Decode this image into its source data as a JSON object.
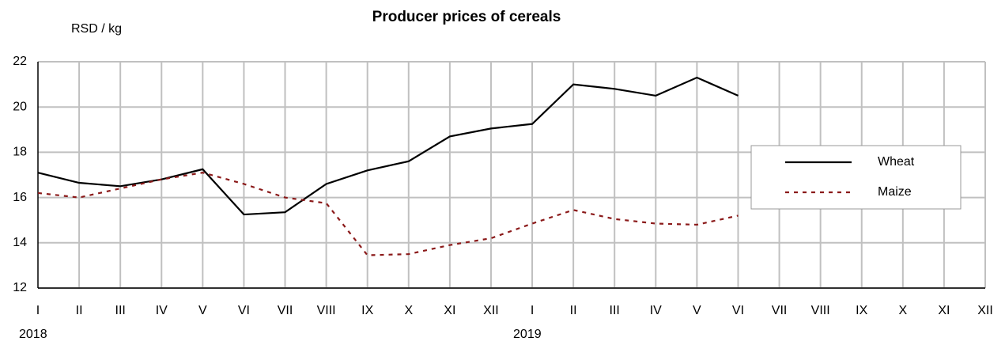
{
  "chart_data": {
    "type": "line",
    "title": "Producer prices of cereals",
    "y_label": "RSD / kg",
    "categories": [
      "I",
      "II",
      "III",
      "IV",
      "V",
      "VI",
      "VII",
      "VIII",
      "IX",
      "X",
      "XI",
      "XII",
      "I",
      "II",
      "III",
      "IV",
      "V",
      "VI",
      "VII",
      "VIII",
      "IX",
      "X",
      "XI",
      "XII"
    ],
    "years": [
      "2018",
      "2019"
    ],
    "series": [
      {
        "name": "Wheat",
        "color": "#000000",
        "dash": "solid",
        "values": [
          17.1,
          16.65,
          16.5,
          16.8,
          17.25,
          15.25,
          15.35,
          16.6,
          17.2,
          17.6,
          18.7,
          19.05,
          19.25,
          21.0,
          20.8,
          20.5,
          21.3,
          20.5,
          null,
          null,
          null,
          null,
          null,
          null
        ]
      },
      {
        "name": "Maize",
        "color": "#8b1a1a",
        "dash": "dotted",
        "values": [
          16.2,
          16.0,
          16.4,
          16.8,
          17.1,
          16.6,
          16.0,
          15.75,
          13.45,
          13.5,
          13.9,
          14.2,
          14.85,
          15.45,
          15.05,
          14.85,
          14.8,
          15.2,
          null,
          null,
          null,
          null,
          null,
          null
        ]
      }
    ],
    "ylim": [
      12,
      22
    ],
    "yticks": [
      12,
      14,
      16,
      18,
      20,
      22
    ],
    "grid": true,
    "legend": "right"
  }
}
